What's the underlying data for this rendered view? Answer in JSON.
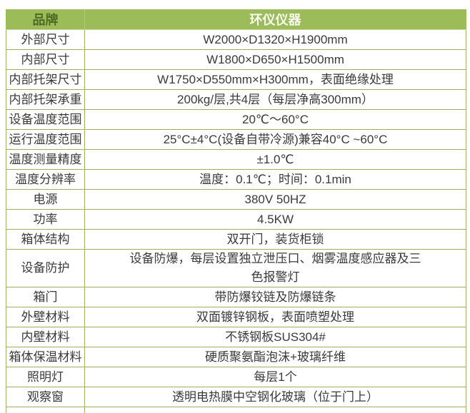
{
  "table": {
    "header": {
      "col1": "品牌",
      "col2": "环仪仪器"
    },
    "rows": [
      {
        "label": "外部尺寸",
        "value": "W2000×D1320×H1900mm"
      },
      {
        "label": "内部尺寸",
        "value": "W1800×D650×H1500mm"
      },
      {
        "label": "内部托架尺寸",
        "value": "W1750×D550mm×H300mm，表面绝缘处理"
      },
      {
        "label": "内部托架承重",
        "value": "200kg/层,共4层（每层净高300mm）"
      },
      {
        "label": "设备温度范围",
        "value": "20℃～60°C"
      },
      {
        "label": "运行温度范围",
        "value": "25°C±4°C(设备自带冷源)兼容40°C ~60°C"
      },
      {
        "label": "温度测量精度",
        "value": "±1.0℃"
      },
      {
        "label": "温度分辨率",
        "value": "温度：0.1℃；时间：0.1min"
      },
      {
        "label": "电源",
        "value": "380V 50HZ"
      },
      {
        "label": "功率",
        "value": "4.5KW"
      },
      {
        "label": "箱体结构",
        "value": "双开门，装货柜锁"
      },
      {
        "label": "设备防护",
        "value": "设备防爆，每层设置独立泄压口、烟雾温度感应器及三\n色报警灯"
      },
      {
        "label": "箱门",
        "value": "带防爆铰链及防爆链条"
      },
      {
        "label": "外壁材料",
        "value": "双面镀锌钢板，表面喷塑处理"
      },
      {
        "label": "内壁材料",
        "value": "不锈钢板SUS304#"
      },
      {
        "label": "箱体保温材料",
        "value": "硬质聚氨酯泡沫+玻璃纤维"
      },
      {
        "label": "照明灯",
        "value": "每层1个"
      },
      {
        "label": "观察窗",
        "value": "透明电热膜中空钢化玻璃（位于门上）"
      },
      {
        "label": "",
        "value": ""
      }
    ],
    "colors": {
      "header_bg": "#9cbb59",
      "header_label_text": "#4e6b21",
      "header_value_text": "#f7faf0",
      "border": "#a2ad5f",
      "body_text": "#3a3a3a"
    }
  }
}
